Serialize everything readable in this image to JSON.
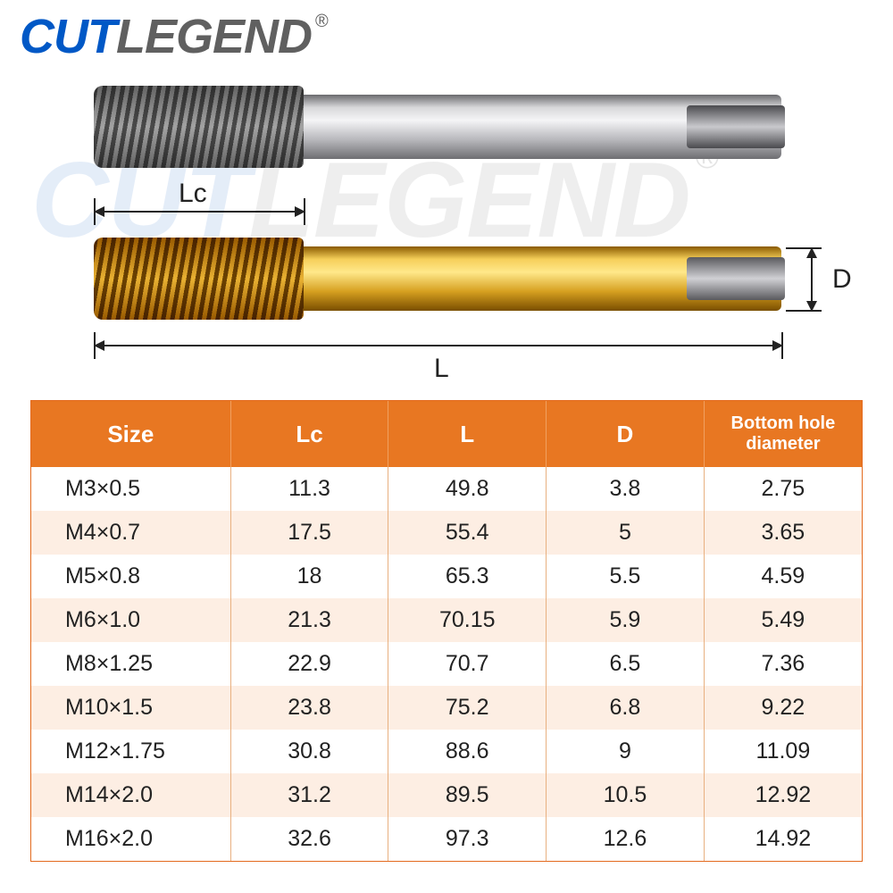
{
  "brand": {
    "part1": "CUT",
    "part2": "LEGEND",
    "reg": "®"
  },
  "labels": {
    "Lc": "Lc",
    "L": "L",
    "D": "D"
  },
  "table": {
    "headers": {
      "size": "Size",
      "lc": "Lc",
      "l": "L",
      "d": "D",
      "bhd1": "Bottom hole",
      "bhd2": "diameter"
    },
    "rows": [
      {
        "size": "M3×0.5",
        "lc": "11.3",
        "l": "49.8",
        "d": "3.8",
        "bhd": "2.75"
      },
      {
        "size": "M4×0.7",
        "lc": "17.5",
        "l": "55.4",
        "d": "5",
        "bhd": "3.65"
      },
      {
        "size": "M5×0.8",
        "lc": "18",
        "l": "65.3",
        "d": "5.5",
        "bhd": "4.59"
      },
      {
        "size": "M6×1.0",
        "lc": "21.3",
        "l": "70.15",
        "d": "5.9",
        "bhd": "5.49"
      },
      {
        "size": "M8×1.25",
        "lc": "22.9",
        "l": "70.7",
        "d": "6.5",
        "bhd": "7.36"
      },
      {
        "size": "M10×1.5",
        "lc": "23.8",
        "l": "75.2",
        "d": "6.8",
        "bhd": "9.22"
      },
      {
        "size": "M12×1.75",
        "lc": "30.8",
        "l": "88.6",
        "d": "9",
        "bhd": "11.09"
      },
      {
        "size": "M14×2.0",
        "lc": "31.2",
        "l": "89.5",
        "d": "10.5",
        "bhd": "12.92"
      },
      {
        "size": "M16×2.0",
        "lc": "32.6",
        "l": "97.3",
        "d": "12.6",
        "bhd": "14.92"
      }
    ]
  }
}
